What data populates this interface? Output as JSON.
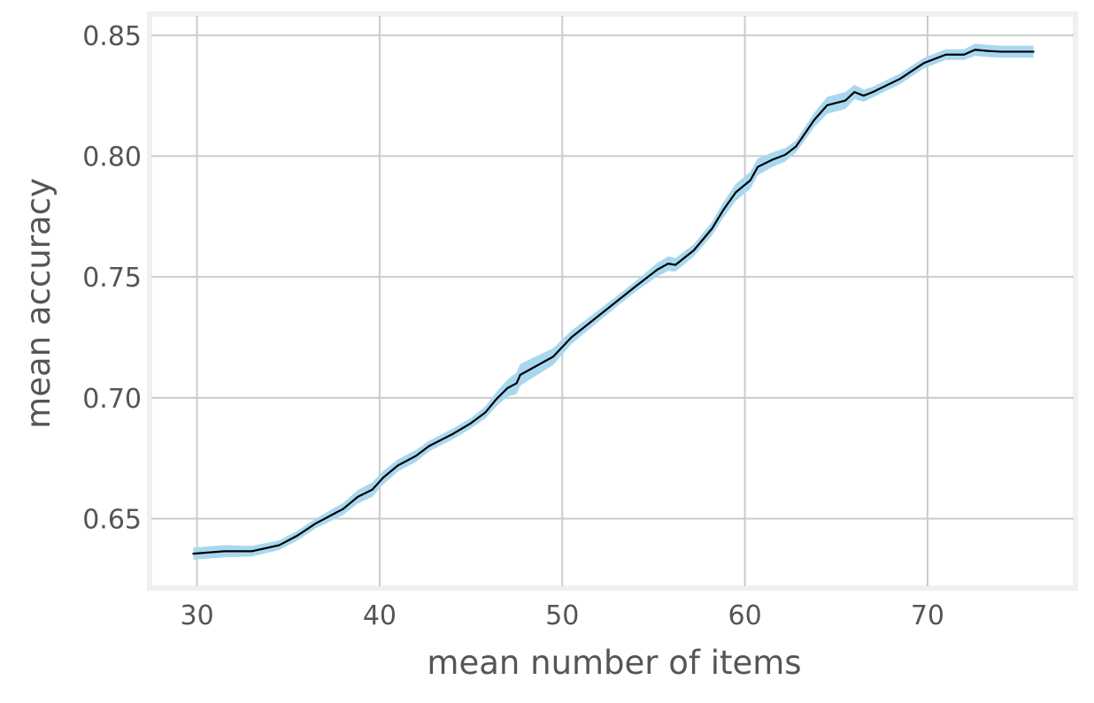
{
  "chart_data": {
    "type": "line",
    "title": "",
    "xlabel": "mean number of items",
    "ylabel": "mean accuracy",
    "xlim": [
      27.5,
      78
    ],
    "ylim": [
      0.622,
      0.858
    ],
    "x_ticks": [
      30,
      40,
      50,
      60,
      70
    ],
    "x_tick_labels": [
      "30",
      "40",
      "50",
      "60",
      "70"
    ],
    "y_ticks": [
      0.65,
      0.7,
      0.75,
      0.8,
      0.85
    ],
    "y_tick_labels": [
      "0.65",
      "0.70",
      "0.75",
      "0.80",
      "0.85"
    ],
    "grid": true,
    "legend": "none",
    "colors": {
      "line": "#000000",
      "band": "#a8d8f0",
      "grid": "#cbcbcb",
      "frame": "#f0f0f0",
      "text": "#555555"
    },
    "series": [
      {
        "values": [
          [
            29.8,
            0.6355
          ],
          [
            31.5,
            0.6365
          ],
          [
            33.0,
            0.6365
          ],
          [
            34.5,
            0.639
          ],
          [
            35.5,
            0.643
          ],
          [
            36.5,
            0.648
          ],
          [
            37.0,
            0.65
          ],
          [
            38.0,
            0.654
          ],
          [
            38.8,
            0.659
          ],
          [
            39.6,
            0.662
          ],
          [
            40.2,
            0.667
          ],
          [
            41.0,
            0.672
          ],
          [
            42.0,
            0.676
          ],
          [
            42.7,
            0.68
          ],
          [
            44.0,
            0.685
          ],
          [
            45.0,
            0.6895
          ],
          [
            45.8,
            0.694
          ],
          [
            46.4,
            0.6995
          ],
          [
            47.0,
            0.704
          ],
          [
            47.5,
            0.706
          ],
          [
            47.7,
            0.7095
          ],
          [
            49.5,
            0.717
          ],
          [
            50.5,
            0.725
          ],
          [
            51.5,
            0.731
          ],
          [
            53.0,
            0.74
          ],
          [
            54.0,
            0.746
          ],
          [
            55.2,
            0.753
          ],
          [
            55.8,
            0.7555
          ],
          [
            56.2,
            0.755
          ],
          [
            57.2,
            0.761
          ],
          [
            58.2,
            0.77
          ],
          [
            58.8,
            0.7775
          ],
          [
            59.5,
            0.785
          ],
          [
            60.3,
            0.79
          ],
          [
            60.7,
            0.7955
          ],
          [
            61.5,
            0.7985
          ],
          [
            62.2,
            0.8005
          ],
          [
            62.8,
            0.804
          ],
          [
            63.8,
            0.815
          ],
          [
            64.5,
            0.821
          ],
          [
            65.5,
            0.823
          ],
          [
            66.0,
            0.8265
          ],
          [
            66.5,
            0.825
          ],
          [
            67.0,
            0.8265
          ],
          [
            68.5,
            0.832
          ],
          [
            69.8,
            0.8385
          ],
          [
            71.0,
            0.842
          ],
          [
            72.0,
            0.842
          ],
          [
            72.6,
            0.844
          ],
          [
            73.3,
            0.8435
          ],
          [
            74.0,
            0.8432
          ],
          [
            75.8,
            0.8432
          ]
        ],
        "band_width": [
          0.0025,
          0.0025,
          0.0022,
          0.002,
          0.002,
          0.002,
          0.0022,
          0.0025,
          0.0028,
          0.003,
          0.0028,
          0.0025,
          0.0025,
          0.0022,
          0.0022,
          0.0022,
          0.0025,
          0.003,
          0.0035,
          0.0045,
          0.0045,
          0.0035,
          0.0028,
          0.0025,
          0.0022,
          0.0022,
          0.0028,
          0.003,
          0.0028,
          0.0025,
          0.0028,
          0.0032,
          0.0035,
          0.0035,
          0.0035,
          0.003,
          0.0028,
          0.0025,
          0.003,
          0.0035,
          0.0035,
          0.003,
          0.0025,
          0.0022,
          0.0022,
          0.0022,
          0.0022,
          0.0022,
          0.0025,
          0.0025,
          0.0025,
          0.0025
        ]
      }
    ]
  }
}
